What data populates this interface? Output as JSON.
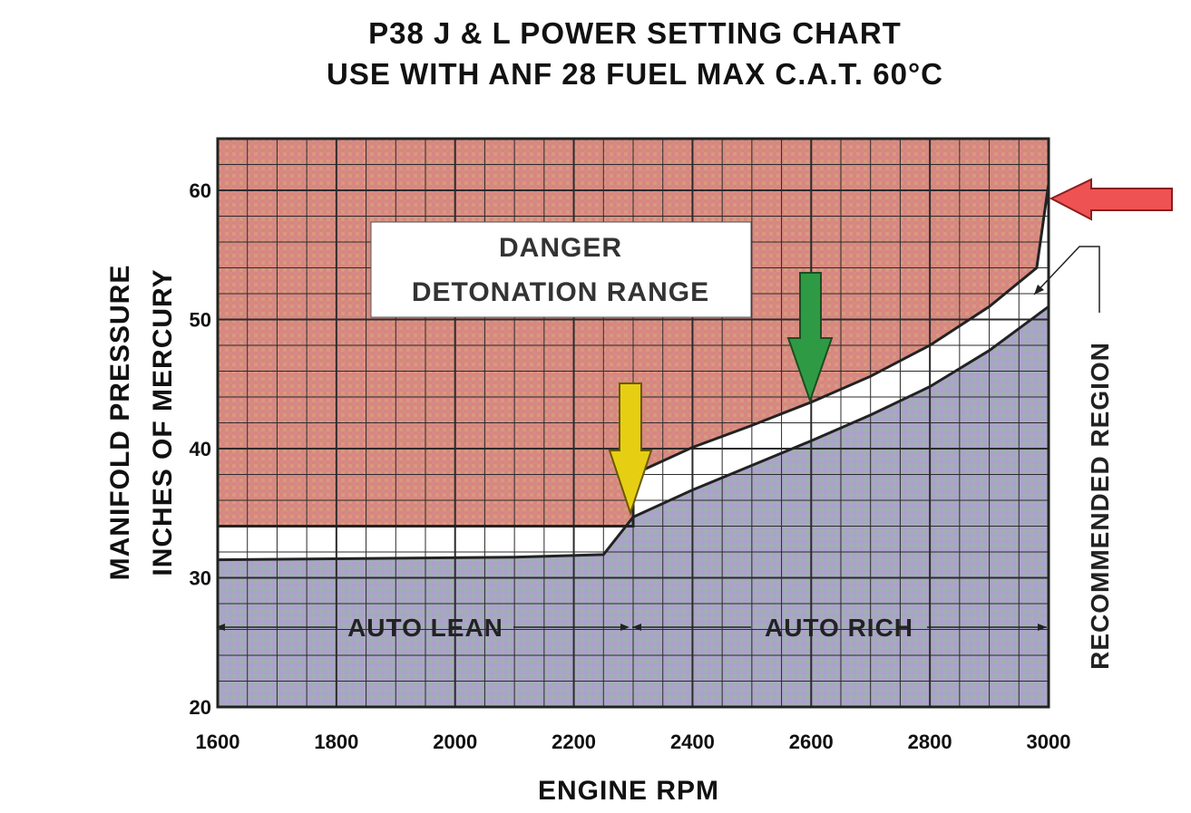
{
  "title_line1": "P38  J & L  POWER  SETTING  CHART",
  "title_line2": "USE  WITH  ANF 28  FUEL  MAX  C.A.T.  60°C",
  "chart_data": {
    "type": "area",
    "xlabel": "ENGINE  RPM",
    "ylabel_line1": "MANIFOLD  PRESSURE",
    "ylabel_line2": "INCHES  OF  MERCURY",
    "xlim": [
      1600,
      3000
    ],
    "ylim": [
      20,
      64
    ],
    "x_ticks": [
      "1600",
      "1800",
      "2000",
      "2200",
      "2400",
      "2600",
      "2800",
      "3000"
    ],
    "y_ticks": [
      "20",
      "30",
      "40",
      "50",
      "60"
    ],
    "grid": true,
    "regions": {
      "danger_line1": "DANGER",
      "danger_line2": "DETONATION  RANGE",
      "auto_lean": "AUTO  LEAN",
      "auto_rich": "AUTO  RICH",
      "recommended": "RECOMMENDED  REGION"
    },
    "series": [
      {
        "name": "upper boundary",
        "x": [
          1600,
          2300,
          2300,
          2400,
          2500,
          2600,
          2700,
          2800,
          2900,
          2980,
          3000
        ],
        "values": [
          34,
          34,
          38,
          40.1,
          41.8,
          43.6,
          45.6,
          48.0,
          51.0,
          54.0,
          60.5
        ]
      },
      {
        "name": "lower boundary",
        "x": [
          1600,
          2100,
          2250,
          2300,
          2400,
          2500,
          2600,
          2700,
          2800,
          2900,
          3000
        ],
        "values": [
          31.4,
          31.6,
          31.8,
          34.7,
          36.8,
          38.7,
          40.6,
          42.6,
          44.8,
          47.6,
          51.0
        ]
      }
    ],
    "markers": [
      {
        "color": "yellow",
        "x": 2300,
        "y": 34.7
      },
      {
        "color": "green",
        "x": 2600,
        "y": 43.6
      },
      {
        "color": "red",
        "x": 3000,
        "y": 60.5
      }
    ],
    "colors": {
      "danger": "#d9877a",
      "recommended": "#ffffff",
      "below": "#a7a6c7",
      "grid": "#2b2b2b",
      "yellow_arrow": "#e6cf12",
      "green_arrow": "#2f9a44",
      "red_arrow": "#ef5252"
    }
  }
}
